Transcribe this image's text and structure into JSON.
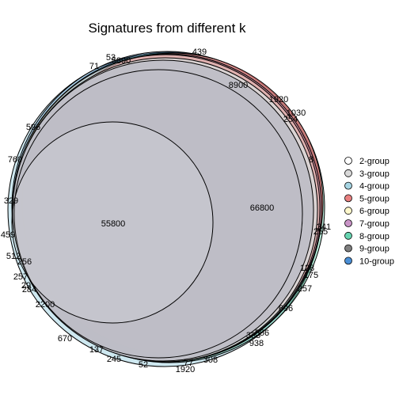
{
  "title": "Signatures from different k",
  "legend": [
    {
      "label": "2-group",
      "color": "#ffffff"
    },
    {
      "label": "3-group",
      "color": "#d9d9d9"
    },
    {
      "label": "4-group",
      "color": "#a6d5e3"
    },
    {
      "label": "5-group",
      "color": "#e98080"
    },
    {
      "label": "6-group",
      "color": "#fff8cc"
    },
    {
      "label": "7-group",
      "color": "#c994c7"
    },
    {
      "label": "8-group",
      "color": "#66d4b0"
    },
    {
      "label": "9-group",
      "color": "#7f7f7f"
    },
    {
      "label": "10-group",
      "color": "#4a8fd6"
    }
  ],
  "region_labels": [
    "55800",
    "66800",
    "8900",
    "5890",
    "439",
    "53",
    "71",
    "1920",
    "1030",
    "254",
    "8",
    "596",
    "760",
    "329",
    "459",
    "512",
    "256",
    "257",
    "29",
    "284",
    "2200",
    "670",
    "137",
    "245",
    "52",
    "77",
    "1920",
    "308",
    "938",
    "333",
    "556",
    "696",
    "257",
    "175",
    "128",
    "255",
    "341"
  ]
}
